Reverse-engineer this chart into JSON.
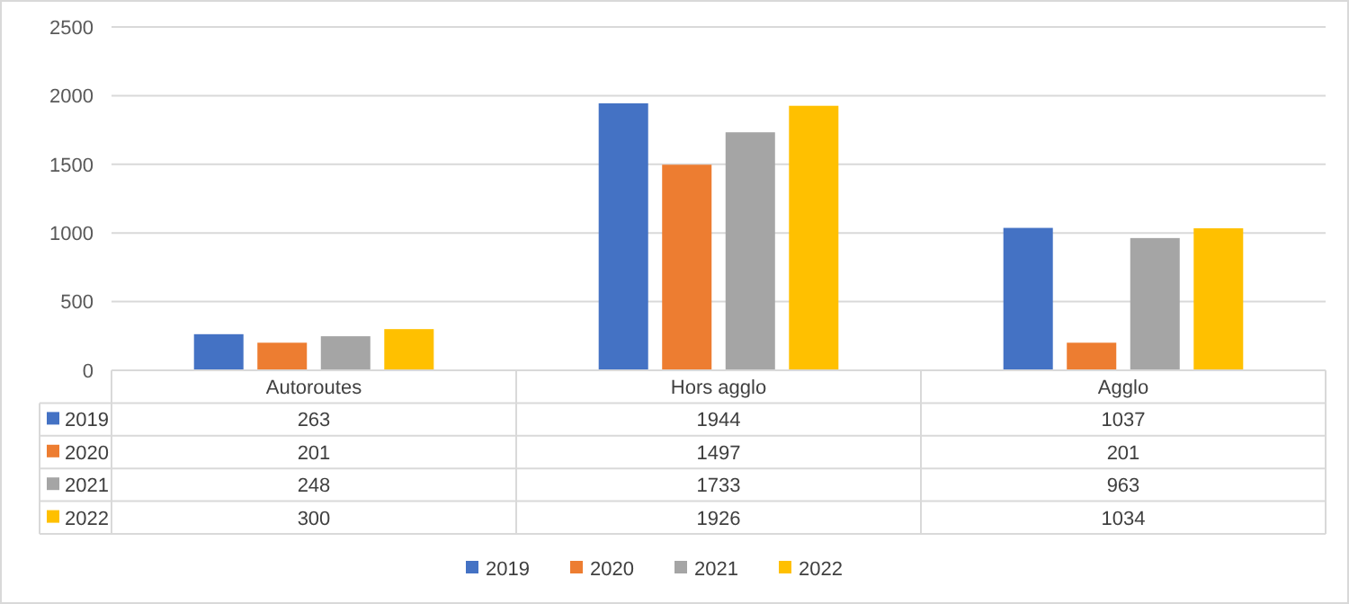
{
  "chart_data": {
    "type": "bar",
    "categories": [
      "Autoroutes",
      "Hors agglo",
      "Agglo"
    ],
    "series": [
      {
        "name": "2019",
        "color": "#4472c4",
        "values": [
          263,
          1944,
          1037
        ]
      },
      {
        "name": "2020",
        "color": "#ed7d31",
        "values": [
          201,
          1497,
          201
        ]
      },
      {
        "name": "2021",
        "color": "#a5a5a5",
        "values": [
          248,
          1733,
          963
        ]
      },
      {
        "name": "2022",
        "color": "#ffc000",
        "values": [
          300,
          1926,
          1034
        ]
      }
    ],
    "ylim": [
      0,
      2500
    ],
    "yticks": [
      0,
      500,
      1000,
      1500,
      2000,
      2500
    ],
    "grid": "y",
    "legend": "bottom",
    "data_labels": true
  }
}
